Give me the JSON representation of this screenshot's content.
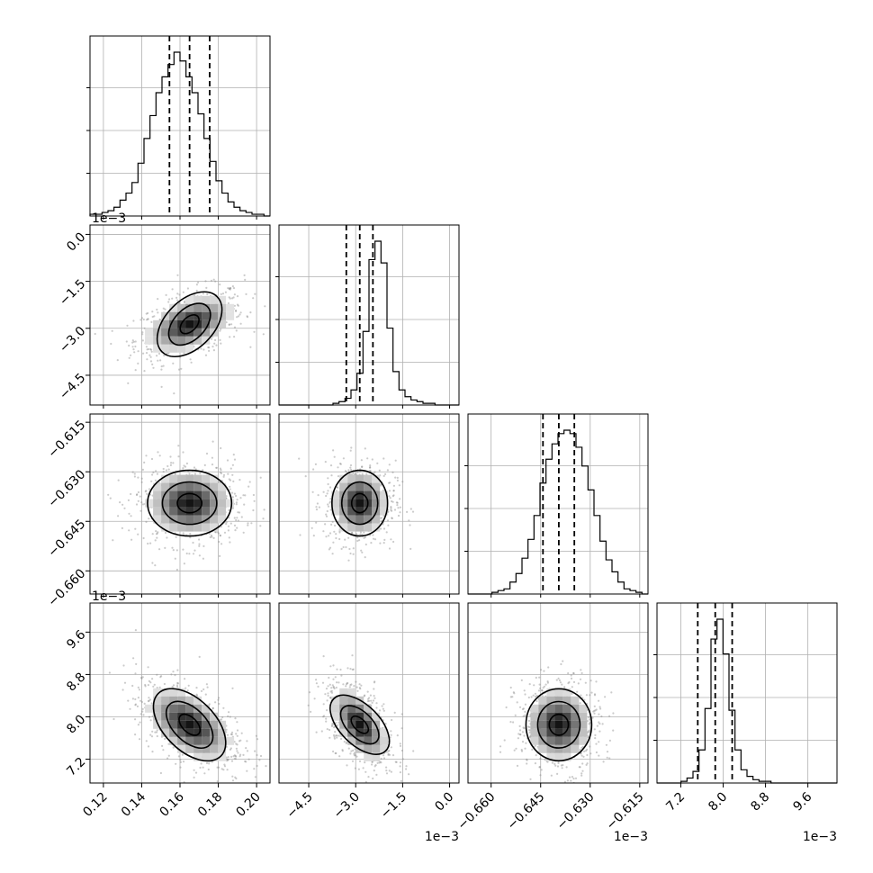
{
  "chart_data": {
    "type": "corner",
    "title": "",
    "params": [
      {
        "tick_values": [
          0.12,
          0.14,
          0.16,
          0.18,
          0.2
        ],
        "tick_labels": [
          "0.12",
          "0.14",
          "0.16",
          "0.18",
          "0.20"
        ],
        "range": [
          0.113,
          0.207
        ],
        "scale_note": "",
        "median": 0.165,
        "q16": 0.1545,
        "q84": 0.1755
      },
      {
        "tick_values": [
          -4.5,
          -3.0,
          -1.5,
          0.0
        ],
        "tick_labels": [
          "−4.5",
          "−3.0",
          "−1.5",
          "0.0"
        ],
        "range": [
          -5.45,
          0.3
        ],
        "scale_note": "1e−3",
        "median": -2.87,
        "q16": -3.3,
        "q84": -2.45
      },
      {
        "tick_values": [
          -0.66,
          -0.645,
          -0.63,
          -0.615
        ],
        "tick_labels": [
          "−0.660",
          "−0.645",
          "−0.630",
          "−0.615"
        ],
        "range": [
          -0.667,
          -0.6125
        ],
        "scale_note": "1e−3",
        "median": -0.6395,
        "q16": -0.6443,
        "q84": -0.6348
      },
      {
        "tick_values": [
          7.2,
          8.0,
          8.8,
          9.6
        ],
        "tick_labels": [
          "7.2",
          "8.0",
          "8.8",
          "9.6"
        ],
        "range": [
          6.75,
          10.15
        ],
        "scale_note": "1e−3",
        "median": 7.85,
        "q16": 7.52,
        "q84": 8.17
      }
    ],
    "histograms": [
      [
        1,
        1,
        2,
        3,
        5,
        9,
        13,
        19,
        30,
        44,
        57,
        70,
        79,
        86,
        93,
        88,
        79,
        70,
        58,
        44,
        31,
        20,
        13,
        8,
        5,
        3,
        2,
        1,
        1,
        0
      ],
      [
        0,
        0,
        0,
        0,
        0,
        0,
        0,
        0,
        0,
        1,
        2,
        4,
        9,
        19,
        44,
        87,
        98,
        85,
        46,
        20,
        9,
        5,
        3,
        2,
        1,
        1,
        0,
        0,
        0,
        0
      ],
      [
        0,
        0,
        0,
        0,
        1,
        2,
        3,
        7,
        12,
        21,
        32,
        46,
        65,
        79,
        88,
        94,
        96,
        94,
        86,
        75,
        61,
        46,
        31,
        20,
        13,
        7,
        3,
        2,
        1,
        0
      ],
      [
        0,
        0,
        0,
        0,
        1,
        3,
        7,
        20,
        45,
        87,
        99,
        78,
        44,
        20,
        8,
        4,
        2,
        1,
        1,
        0,
        0,
        0,
        0,
        0,
        0,
        0,
        0,
        0,
        0,
        0
      ]
    ],
    "correlations": {
      "1,0": 0.45,
      "2,0": 0.0,
      "2,1": 0.0,
      "3,0": -0.5,
      "3,1": -0.55,
      "3,2": 0.0
    },
    "contour_levels": [
      "39.3%",
      "86.5%",
      "98.9%"
    ],
    "grid": true
  }
}
